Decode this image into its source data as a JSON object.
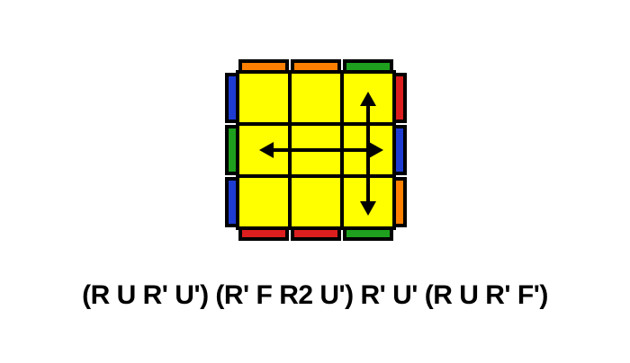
{
  "colors": {
    "yellow": "#FFFF00",
    "orange": "#FF8000",
    "green": "#1EA01E",
    "blue": "#1E3CD2",
    "red": "#DC1E1E",
    "outline": "#000000",
    "background": "#FFFFFF"
  },
  "cube": {
    "top_face": [
      [
        "yellow",
        "yellow",
        "yellow"
      ],
      [
        "yellow",
        "yellow",
        "yellow"
      ],
      [
        "yellow",
        "yellow",
        "yellow"
      ]
    ],
    "back_edge": [
      "orange",
      "orange",
      "green"
    ],
    "front_edge": [
      "red",
      "red",
      "green"
    ],
    "left_edge": [
      "blue",
      "green",
      "blue"
    ],
    "right_edge": [
      "red",
      "blue",
      "orange"
    ]
  },
  "arrows": [
    {
      "type": "double-headed",
      "from": "left-edge-piece",
      "to": "right-edge-piece"
    },
    {
      "type": "double-headed",
      "from": "back-right-corner",
      "to": "front-right-corner"
    }
  ],
  "algorithm": "(R U R' U') (R' F R2 U') R' U' (R U R' F')"
}
